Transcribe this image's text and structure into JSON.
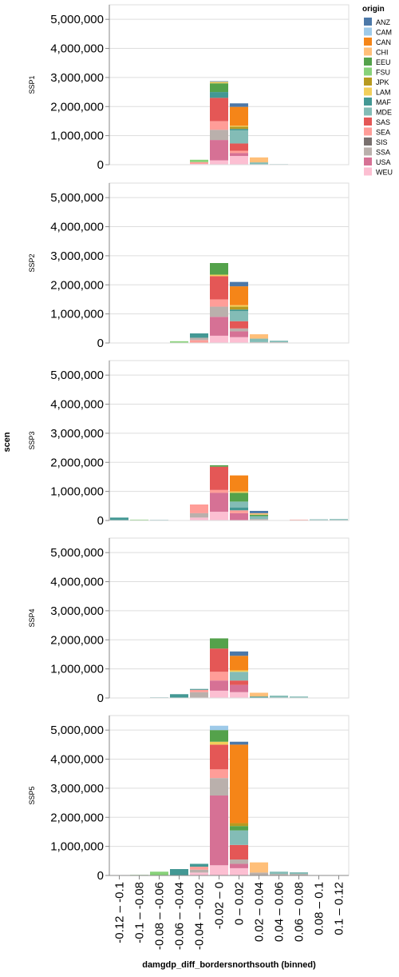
{
  "chart_data": {
    "type": "bar",
    "stacked": true,
    "row_title": "scen",
    "xlabel": "damgdp_diff_bordersnorthsouth (binned)",
    "ylim": [
      0,
      5500000
    ],
    "yticks": [
      "0",
      "1,000,000",
      "2,000,000",
      "3,000,000",
      "4,000,000",
      "5,000,000"
    ],
    "ytick_values": [
      0,
      1000000,
      2000000,
      3000000,
      4000000,
      5000000
    ],
    "grid": true,
    "bins": [
      "-0.12 – -0.1",
      "-0.1 – -0.08",
      "-0.08 – -0.06",
      "-0.06 – -0.04",
      "-0.04 – -0.02",
      "-0.02 – 0",
      "0 – 0.02",
      "0.02 – 0.04",
      "0.04 – 0.06",
      "0.06 – 0.08",
      "0.08 – 0.1",
      "0.1 – 0.12"
    ],
    "legend": {
      "title": "origin",
      "placement": "top-right",
      "items": [
        {
          "label": "ANZ",
          "color": "#4c78a8"
        },
        {
          "label": "CAM",
          "color": "#9ecae9"
        },
        {
          "label": "CAN",
          "color": "#f58518"
        },
        {
          "label": "CHI",
          "color": "#ffbf79"
        },
        {
          "label": "EEU",
          "color": "#54a24b"
        },
        {
          "label": "FSU",
          "color": "#88d27a"
        },
        {
          "label": "JPK",
          "color": "#b79a20"
        },
        {
          "label": "LAM",
          "color": "#f2cf5b"
        },
        {
          "label": "MAF",
          "color": "#439894"
        },
        {
          "label": "MDE",
          "color": "#83bcb6"
        },
        {
          "label": "SAS",
          "color": "#e45756"
        },
        {
          "label": "SEA",
          "color": "#ff9d98"
        },
        {
          "label": "SIS",
          "color": "#79706e"
        },
        {
          "label": "SSA",
          "color": "#bab0ac"
        },
        {
          "label": "USA",
          "color": "#d67195"
        },
        {
          "label": "WEU",
          "color": "#fcbfd2"
        }
      ]
    },
    "panels": [
      {
        "scen": "SSP1",
        "bars": [
          {
            "bin": 4,
            "stack": [
              {
                "origin": "WEU",
                "value": 30000
              },
              {
                "origin": "SEA",
                "value": 60000
              },
              {
                "origin": "FSU",
                "value": 80000
              }
            ]
          },
          {
            "bin": 5,
            "stack": [
              {
                "origin": "WEU",
                "value": 150000
              },
              {
                "origin": "USA",
                "value": 700000
              },
              {
                "origin": "SSA",
                "value": 350000
              },
              {
                "origin": "SEA",
                "value": 300000
              },
              {
                "origin": "SAS",
                "value": 800000
              },
              {
                "origin": "MAF",
                "value": 200000
              },
              {
                "origin": "EEU",
                "value": 300000
              },
              {
                "origin": "LAM",
                "value": 50000
              },
              {
                "origin": "ANZ",
                "value": 20000
              }
            ]
          },
          {
            "bin": 6,
            "stack": [
              {
                "origin": "WEU",
                "value": 300000
              },
              {
                "origin": "USA",
                "value": 100000
              },
              {
                "origin": "SEA",
                "value": 80000
              },
              {
                "origin": "SAS",
                "value": 250000
              },
              {
                "origin": "MDE",
                "value": 450000
              },
              {
                "origin": "MAF",
                "value": 50000
              },
              {
                "origin": "JPK",
                "value": 80000
              },
              {
                "origin": "LAM",
                "value": 30000
              },
              {
                "origin": "CAN",
                "value": 650000
              },
              {
                "origin": "ANZ",
                "value": 120000
              }
            ]
          },
          {
            "bin": 7,
            "stack": [
              {
                "origin": "MDE",
                "value": 80000
              },
              {
                "origin": "CHI",
                "value": 170000
              }
            ]
          },
          {
            "bin": 8,
            "stack": [
              {
                "origin": "MDE",
                "value": 20000
              }
            ]
          }
        ]
      },
      {
        "scen": "SSP2",
        "bars": [
          {
            "bin": 2,
            "stack": [
              {
                "origin": "MAF",
                "value": 10000
              }
            ]
          },
          {
            "bin": 3,
            "stack": [
              {
                "origin": "FSU",
                "value": 60000
              }
            ]
          },
          {
            "bin": 4,
            "stack": [
              {
                "origin": "SEA",
                "value": 100000
              },
              {
                "origin": "SSA",
                "value": 80000
              },
              {
                "origin": "MAF",
                "value": 150000
              }
            ]
          },
          {
            "bin": 5,
            "stack": [
              {
                "origin": "WEU",
                "value": 250000
              },
              {
                "origin": "USA",
                "value": 650000
              },
              {
                "origin": "SSA",
                "value": 350000
              },
              {
                "origin": "SEA",
                "value": 250000
              },
              {
                "origin": "SAS",
                "value": 800000
              },
              {
                "origin": "LAM",
                "value": 50000
              },
              {
                "origin": "EEU",
                "value": 400000
              }
            ]
          },
          {
            "bin": 6,
            "stack": [
              {
                "origin": "WEU",
                "value": 200000
              },
              {
                "origin": "USA",
                "value": 200000
              },
              {
                "origin": "SSA",
                "value": 100000
              },
              {
                "origin": "SAS",
                "value": 250000
              },
              {
                "origin": "MDE",
                "value": 350000
              },
              {
                "origin": "MAF",
                "value": 50000
              },
              {
                "origin": "JPK",
                "value": 100000
              },
              {
                "origin": "LAM",
                "value": 50000
              },
              {
                "origin": "CAN",
                "value": 650000
              },
              {
                "origin": "ANZ",
                "value": 150000
              }
            ]
          },
          {
            "bin": 7,
            "stack": [
              {
                "origin": "SSA",
                "value": 30000
              },
              {
                "origin": "MDE",
                "value": 120000
              },
              {
                "origin": "CHI",
                "value": 150000
              }
            ]
          },
          {
            "bin": 8,
            "stack": [
              {
                "origin": "SSA",
                "value": 30000
              },
              {
                "origin": "MDE",
                "value": 50000
              }
            ]
          },
          {
            "bin": 9,
            "stack": [
              {
                "origin": "CHI",
                "value": 10000
              }
            ]
          }
        ]
      },
      {
        "scen": "SSP3",
        "bars": [
          {
            "bin": 0,
            "stack": [
              {
                "origin": "MAF",
                "value": 100000
              }
            ]
          },
          {
            "bin": 1,
            "stack": [
              {
                "origin": "FSU",
                "value": 30000
              }
            ]
          },
          {
            "bin": 2,
            "stack": [
              {
                "origin": "MAF",
                "value": 20000
              }
            ]
          },
          {
            "bin": 3,
            "stack": [
              {
                "origin": "MAF",
                "value": 10000
              }
            ]
          },
          {
            "bin": 4,
            "stack": [
              {
                "origin": "WEU",
                "value": 100000
              },
              {
                "origin": "SSA",
                "value": 150000
              },
              {
                "origin": "SEA",
                "value": 300000
              }
            ]
          },
          {
            "bin": 5,
            "stack": [
              {
                "origin": "WEU",
                "value": 300000
              },
              {
                "origin": "USA",
                "value": 650000
              },
              {
                "origin": "SEA",
                "value": 100000
              },
              {
                "origin": "SAS",
                "value": 800000
              },
              {
                "origin": "EEU",
                "value": 50000
              }
            ]
          },
          {
            "bin": 6,
            "stack": [
              {
                "origin": "USA",
                "value": 250000
              },
              {
                "origin": "SEA",
                "value": 100000
              },
              {
                "origin": "MAF",
                "value": 100000
              },
              {
                "origin": "MDE",
                "value": 200000
              },
              {
                "origin": "EEU",
                "value": 300000
              },
              {
                "origin": "LAM",
                "value": 50000
              },
              {
                "origin": "CAN",
                "value": 550000
              }
            ]
          },
          {
            "bin": 7,
            "stack": [
              {
                "origin": "SSA",
                "value": 50000
              },
              {
                "origin": "MDE",
                "value": 100000
              },
              {
                "origin": "EEU",
                "value": 50000
              },
              {
                "origin": "CHI",
                "value": 50000
              },
              {
                "origin": "ANZ",
                "value": 80000
              }
            ]
          },
          {
            "bin": 8,
            "stack": [
              {
                "origin": "MAF",
                "value": 10000
              }
            ]
          },
          {
            "bin": 9,
            "stack": [
              {
                "origin": "SEA",
                "value": 30000
              }
            ]
          },
          {
            "bin": 10,
            "stack": [
              {
                "origin": "MDE",
                "value": 40000
              }
            ]
          },
          {
            "bin": 11,
            "stack": [
              {
                "origin": "MDE",
                "value": 50000
              }
            ]
          }
        ]
      },
      {
        "scen": "SSP4",
        "bars": [
          {
            "bin": 2,
            "stack": [
              {
                "origin": "MAF",
                "value": 20000
              }
            ]
          },
          {
            "bin": 3,
            "stack": [
              {
                "origin": "MAF",
                "value": 130000
              }
            ]
          },
          {
            "bin": 4,
            "stack": [
              {
                "origin": "SSA",
                "value": 200000
              },
              {
                "origin": "SEA",
                "value": 80000
              },
              {
                "origin": "MAF",
                "value": 30000
              }
            ]
          },
          {
            "bin": 5,
            "stack": [
              {
                "origin": "WEU",
                "value": 250000
              },
              {
                "origin": "USA",
                "value": 350000
              },
              {
                "origin": "SEA",
                "value": 300000
              },
              {
                "origin": "SAS",
                "value": 800000
              },
              {
                "origin": "EEU",
                "value": 350000
              }
            ]
          },
          {
            "bin": 6,
            "stack": [
              {
                "origin": "WEU",
                "value": 200000
              },
              {
                "origin": "USA",
                "value": 250000
              },
              {
                "origin": "SAS",
                "value": 150000
              },
              {
                "origin": "MDE",
                "value": 300000
              },
              {
                "origin": "LAM",
                "value": 50000
              },
              {
                "origin": "CAN",
                "value": 500000
              },
              {
                "origin": "ANZ",
                "value": 150000
              }
            ]
          },
          {
            "bin": 7,
            "stack": [
              {
                "origin": "MAF",
                "value": 50000
              },
              {
                "origin": "CHI",
                "value": 130000
              }
            ]
          },
          {
            "bin": 8,
            "stack": [
              {
                "origin": "MDE",
                "value": 80000
              }
            ]
          },
          {
            "bin": 9,
            "stack": [
              {
                "origin": "MDE",
                "value": 50000
              }
            ]
          }
        ]
      },
      {
        "scen": "SSP5",
        "bars": [
          {
            "bin": 1,
            "stack": [
              {
                "origin": "FSU",
                "value": 20000
              }
            ]
          },
          {
            "bin": 2,
            "stack": [
              {
                "origin": "FSU",
                "value": 130000
              }
            ]
          },
          {
            "bin": 3,
            "stack": [
              {
                "origin": "MAF",
                "value": 220000
              }
            ]
          },
          {
            "bin": 4,
            "stack": [
              {
                "origin": "WEU",
                "value": 100000
              },
              {
                "origin": "SSA",
                "value": 100000
              },
              {
                "origin": "SEA",
                "value": 100000
              },
              {
                "origin": "MAF",
                "value": 100000
              }
            ]
          },
          {
            "bin": 5,
            "stack": [
              {
                "origin": "WEU",
                "value": 350000
              },
              {
                "origin": "USA",
                "value": 2400000
              },
              {
                "origin": "SSA",
                "value": 600000
              },
              {
                "origin": "SEA",
                "value": 300000
              },
              {
                "origin": "SAS",
                "value": 850000
              },
              {
                "origin": "LAM",
                "value": 100000
              },
              {
                "origin": "EEU",
                "value": 400000
              },
              {
                "origin": "CAM",
                "value": 150000
              }
            ]
          },
          {
            "bin": 6,
            "stack": [
              {
                "origin": "WEU",
                "value": 250000
              },
              {
                "origin": "USA",
                "value": 150000
              },
              {
                "origin": "SSA",
                "value": 150000
              },
              {
                "origin": "SAS",
                "value": 500000
              },
              {
                "origin": "MDE",
                "value": 500000
              },
              {
                "origin": "EEU",
                "value": 150000
              },
              {
                "origin": "JPK",
                "value": 100000
              },
              {
                "origin": "CAN",
                "value": 2700000
              },
              {
                "origin": "ANZ",
                "value": 100000
              }
            ]
          },
          {
            "bin": 7,
            "stack": [
              {
                "origin": "SSA",
                "value": 100000
              },
              {
                "origin": "CHI",
                "value": 350000
              }
            ]
          },
          {
            "bin": 8,
            "stack": [
              {
                "origin": "SSA",
                "value": 50000
              },
              {
                "origin": "MDE",
                "value": 80000
              }
            ]
          },
          {
            "bin": 9,
            "stack": [
              {
                "origin": "SSA",
                "value": 50000
              },
              {
                "origin": "MDE",
                "value": 60000
              }
            ]
          },
          {
            "bin": 10,
            "stack": [
              {
                "origin": "CHI",
                "value": 10000
              }
            ]
          }
        ]
      }
    ]
  }
}
